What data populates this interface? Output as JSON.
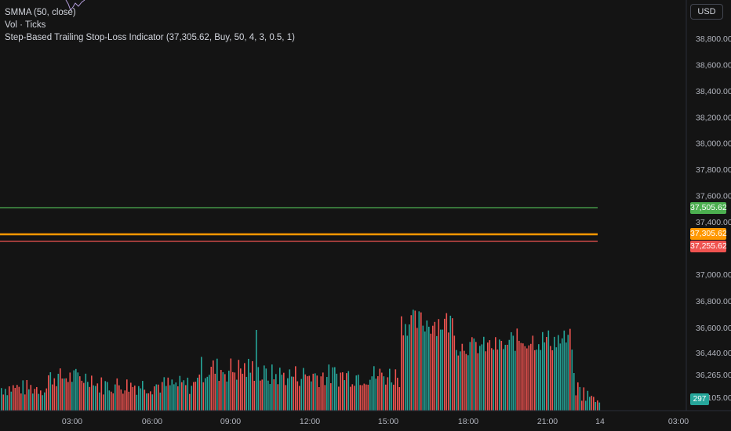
{
  "toolbar": {
    "currency": "USD"
  },
  "legend": {
    "smma": "SMMA (50, close)",
    "volume": "Vol · Ticks",
    "indicator": "Step-Based Trailing Stop-Loss Indicator (37,305.62, Buy, 50, 4, 3, 0.5, 1)"
  },
  "price_axis": {
    "ticks": [
      {
        "value": 38800,
        "label": "38,800.00"
      },
      {
        "value": 38600,
        "label": "38,600.00"
      },
      {
        "value": 38400,
        "label": "38,400.00"
      },
      {
        "value": 38200,
        "label": "38,200.00"
      },
      {
        "value": 38000,
        "label": "38,000.00"
      },
      {
        "value": 37800,
        "label": "37,800.00"
      },
      {
        "value": 37600,
        "label": "37,600.00"
      },
      {
        "value": 37400,
        "label": "37,400.00"
      },
      {
        "value": 37000,
        "label": "37,000.00"
      },
      {
        "value": 36800,
        "label": "36,800.00"
      },
      {
        "value": 36600,
        "label": "36,600.00"
      },
      {
        "value": 36440,
        "label": "36,440.00"
      },
      {
        "value": 36265,
        "label": "36,265.00"
      },
      {
        "value": 36105,
        "label": "36,105.00"
      }
    ]
  },
  "levels": [
    {
      "name": "take-profit",
      "value": 37505.62,
      "label": "37,505.62",
      "color": "#4caf50"
    },
    {
      "name": "entry",
      "value": 37305.62,
      "label": "37,305.62",
      "color": "#ff9800"
    },
    {
      "name": "stop-loss",
      "value": 37255.62,
      "label": "37,255.62",
      "color": "#ef5350"
    }
  ],
  "volume_label": "297",
  "time_axis": [
    "03:00",
    "06:00",
    "09:00",
    "12:00",
    "15:00",
    "18:00",
    "21:00",
    "14",
    "03:00"
  ],
  "colors": {
    "up": "#26a69a",
    "down": "#ef5350",
    "smma": "#b39ddb"
  }
}
